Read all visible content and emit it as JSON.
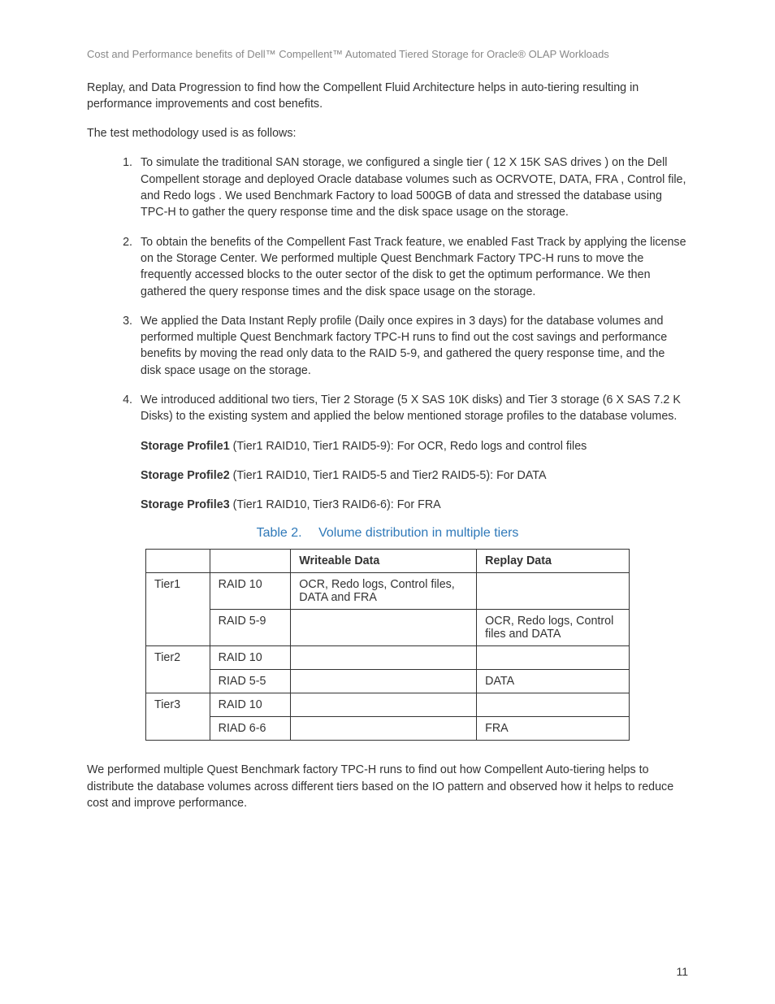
{
  "header": {
    "title": "Cost and Performance benefits of Dell™ Compellent™ Automated Tiered Storage for Oracle® OLAP Workloads"
  },
  "intro1": "Replay, and Data Progression to find how the Compellent Fluid Architecture helps in auto-tiering resulting in performance improvements and cost benefits.",
  "intro2": "The test methodology used is as follows:",
  "list": [
    "To simulate the traditional SAN storage, we configured a single tier ( 12 X 15K SAS drives ) on the Dell Compellent storage and deployed Oracle database volumes such as OCRVOTE, DATA, FRA , Control file, and Redo logs . We used Benchmark Factory to load 500GB of data and stressed the database using TPC-H to gather the query response time and the disk space usage on the storage.",
    "To obtain the benefits of the Compellent Fast Track feature, we enabled Fast Track by applying the license on the Storage Center. We performed multiple Quest Benchmark Factory TPC-H runs to move the frequently accessed blocks to the outer sector of the disk to get the optimum performance. We then gathered the query response times and the disk space usage on the storage.",
    "We applied the Data Instant Reply profile (Daily once expires in 3 days) for the database volumes and performed multiple Quest Benchmark factory TPC-H runs to find out the cost savings and performance benefits by moving the read only data to the RAID 5-9, and gathered the query response time, and the disk space usage on the storage.",
    "We introduced additional two tiers, Tier 2 Storage (5 X SAS 10K disks) and Tier 3 storage (6 X SAS 7.2 K Disks) to the existing system and applied the below mentioned storage profiles to the database volumes."
  ],
  "profiles": [
    {
      "label": "Storage Profile1",
      "text": " (Tier1 RAID10, Tier1 RAID5-9): For OCR, Redo logs and control files"
    },
    {
      "label": "Storage Profile2",
      "text": " (Tier1 RAID10, Tier1 RAID5-5 and Tier2 RAID5-5): For DATA"
    },
    {
      "label": "Storage Profile3",
      "text": " (Tier1 RAID10, Tier3 RAID6-6): For FRA"
    }
  ],
  "table": {
    "caption_label": "Table 2.",
    "caption_title": "Volume distribution in multiple tiers",
    "columns": [
      "",
      "",
      "Writeable Data",
      "Replay Data"
    ],
    "rows": [
      {
        "tier": "Tier1",
        "raid": "RAID 10",
        "write": "OCR, Redo logs, Control files, DATA and FRA",
        "replay": "",
        "merge_start": true
      },
      {
        "tier": "",
        "raid": "RAID 5-9",
        "write": "",
        "replay": "OCR, Redo logs, Control files and DATA",
        "merge_end": true
      },
      {
        "tier": "Tier2",
        "raid": "RAID 10",
        "write": "",
        "replay": "",
        "merge_start": true
      },
      {
        "tier": "",
        "raid": "RIAD 5-5",
        "write": "",
        "replay": "DATA",
        "merge_end": true
      },
      {
        "tier": "Tier3",
        "raid": "RAID 10",
        "write": "",
        "replay": "",
        "merge_start": true
      },
      {
        "tier": "",
        "raid": "RIAD 6-6",
        "write": "",
        "replay": "FRA",
        "merge_end": true
      }
    ]
  },
  "closing": "We performed multiple Quest Benchmark factory TPC-H runs to find out how Compellent Auto-tiering helps to distribute the database volumes across different tiers based on the IO pattern and observed how it helps to reduce cost and improve performance.",
  "page_number": "11"
}
